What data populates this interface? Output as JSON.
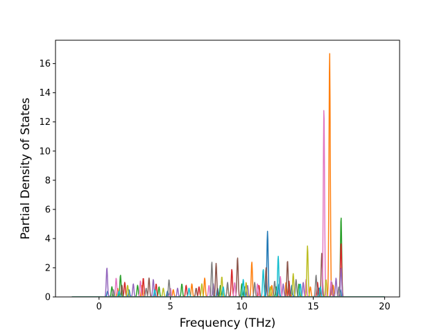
{
  "chart_data": {
    "type": "line",
    "title": "",
    "xlabel": "Frequency (THz)",
    "ylabel": "Partial Density of States",
    "xlim": [
      -3.05,
      21.05
    ],
    "ylim": [
      0,
      17.6
    ],
    "xticks": [
      0,
      5,
      10,
      15,
      20
    ],
    "yticks": [
      0,
      2,
      4,
      6,
      8,
      10,
      12,
      14,
      16
    ],
    "xtick_labels": [
      "0",
      "5",
      "10",
      "15",
      "20"
    ],
    "ytick_labels": [
      "0",
      "2",
      "4",
      "6",
      "8",
      "10",
      "12",
      "14",
      "16"
    ],
    "grid": false,
    "legend": "none",
    "data_range": [
      -1.9,
      20.0
    ],
    "colors": [
      "#1f77b4",
      "#ff7f0e",
      "#2ca02c",
      "#d62728",
      "#9467bd",
      "#8c564b",
      "#e377c2",
      "#7f7f7f",
      "#bcbd22",
      "#17becf"
    ],
    "series": [
      {
        "color": "#1f77b4",
        "peaks": [
          [
            0.6,
            0.4
          ],
          [
            2.1,
            0.5
          ],
          [
            4.8,
            0.4
          ],
          [
            8.3,
            0.6
          ],
          [
            10.2,
            0.7
          ],
          [
            11.8,
            4.5
          ],
          [
            12.6,
            0.9
          ],
          [
            13.5,
            0.8
          ],
          [
            15.4,
            0.6
          ],
          [
            16.9,
            0.5
          ]
        ]
      },
      {
        "color": "#ff7f0e",
        "peaks": [
          [
            1.3,
            0.6
          ],
          [
            3.0,
            0.8
          ],
          [
            5.2,
            0.5
          ],
          [
            6.5,
            0.9
          ],
          [
            7.4,
            1.3
          ],
          [
            9.0,
            0.9
          ],
          [
            10.7,
            2.4
          ],
          [
            12.1,
            0.8
          ],
          [
            13.1,
            1.0
          ],
          [
            14.8,
            0.7
          ],
          [
            16.15,
            16.8
          ],
          [
            16.4,
            0.8
          ]
        ]
      },
      {
        "color": "#2ca02c",
        "peaks": [
          [
            0.9,
            0.7
          ],
          [
            1.5,
            1.5
          ],
          [
            2.7,
            0.8
          ],
          [
            4.2,
            0.7
          ],
          [
            5.8,
            0.9
          ],
          [
            8.5,
            0.8
          ],
          [
            10.0,
            0.9
          ],
          [
            12.4,
            0.7
          ],
          [
            14.0,
            0.9
          ],
          [
            16.95,
            5.5
          ]
        ]
      },
      {
        "color": "#d62728",
        "peaks": [
          [
            1.8,
            1.0
          ],
          [
            3.1,
            1.3
          ],
          [
            4.0,
            0.9
          ],
          [
            6.1,
            0.8
          ],
          [
            7.0,
            0.7
          ],
          [
            9.3,
            1.9
          ],
          [
            11.2,
            0.8
          ],
          [
            13.3,
            1.1
          ],
          [
            15.3,
            1.0
          ],
          [
            16.95,
            3.7
          ]
        ]
      },
      {
        "color": "#9467bd",
        "peaks": [
          [
            0.55,
            2.0
          ],
          [
            2.4,
            0.9
          ],
          [
            3.8,
            1.2
          ],
          [
            5.5,
            0.6
          ],
          [
            8.0,
            0.9
          ],
          [
            10.4,
            0.8
          ],
          [
            12.9,
            0.9
          ],
          [
            14.3,
            1.0
          ],
          [
            16.6,
            1.3
          ],
          [
            16.95,
            2.0
          ]
        ]
      },
      {
        "color": "#8c564b",
        "peaks": [
          [
            1.6,
            0.8
          ],
          [
            3.5,
            1.3
          ],
          [
            6.8,
            0.6
          ],
          [
            8.2,
            2.3
          ],
          [
            9.7,
            2.7
          ],
          [
            11.7,
            2.0
          ],
          [
            13.2,
            2.5
          ],
          [
            15.6,
            3.0
          ],
          [
            16.3,
            1.0
          ]
        ]
      },
      {
        "color": "#e377c2",
        "peaks": [
          [
            1.2,
            1.3
          ],
          [
            2.9,
            1.1
          ],
          [
            5.0,
            0.6
          ],
          [
            7.7,
            0.8
          ],
          [
            9.5,
            1.0
          ],
          [
            11.1,
            0.9
          ],
          [
            12.7,
            1.4
          ],
          [
            14.5,
            1.2
          ],
          [
            15.75,
            13.0
          ],
          [
            16.25,
            1.1
          ]
        ]
      },
      {
        "color": "#7f7f7f",
        "peaks": [
          [
            1.0,
            0.5
          ],
          [
            3.3,
            0.6
          ],
          [
            4.9,
            1.2
          ],
          [
            7.9,
            2.4
          ],
          [
            9.0,
            1.0
          ],
          [
            10.9,
            1.0
          ],
          [
            12.3,
            1.1
          ],
          [
            13.8,
            1.2
          ],
          [
            15.2,
            1.5
          ],
          [
            16.8,
            0.7
          ]
        ]
      },
      {
        "color": "#bcbd22",
        "peaks": [
          [
            2.0,
            0.8
          ],
          [
            4.5,
            0.6
          ],
          [
            7.2,
            0.9
          ],
          [
            8.6,
            1.4
          ],
          [
            10.3,
            1.0
          ],
          [
            12.0,
            0.7
          ],
          [
            13.6,
            1.6
          ],
          [
            14.6,
            3.5
          ],
          [
            15.9,
            1.2
          ]
        ]
      },
      {
        "color": "#17becf",
        "peaks": [
          [
            1.4,
            0.4
          ],
          [
            3.9,
            0.5
          ],
          [
            6.3,
            0.6
          ],
          [
            8.7,
            0.7
          ],
          [
            10.1,
            1.2
          ],
          [
            11.5,
            1.9
          ],
          [
            12.55,
            2.8
          ],
          [
            14.1,
            0.9
          ],
          [
            15.5,
            0.7
          ]
        ]
      }
    ]
  }
}
